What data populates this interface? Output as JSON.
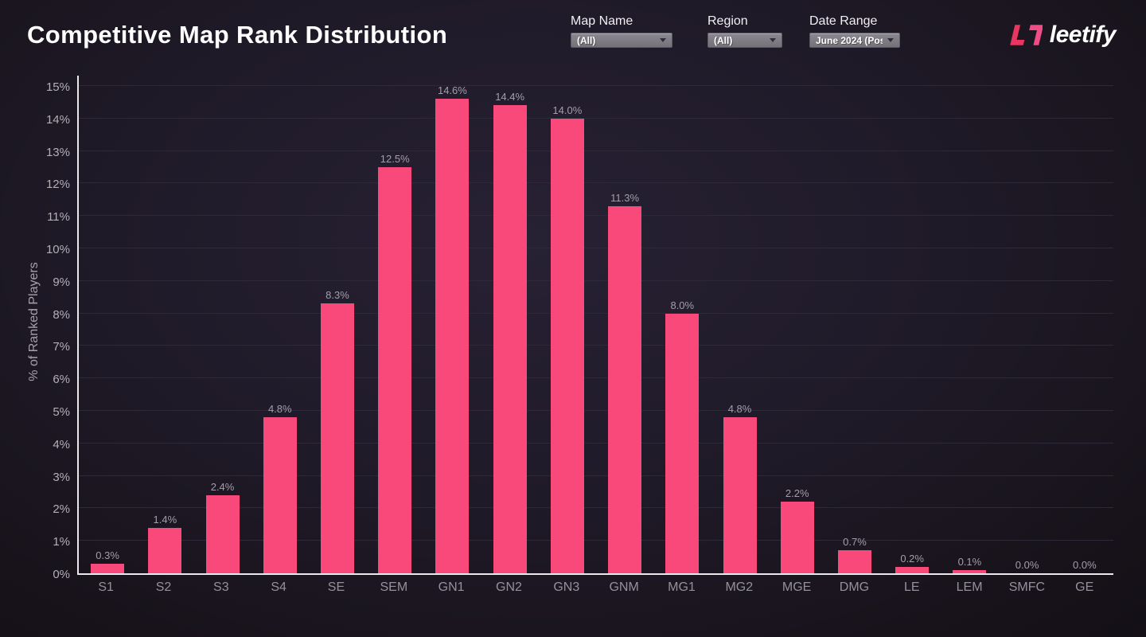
{
  "header": {
    "title": "Competitive Map Rank Distribution",
    "filters": {
      "map": {
        "label": "Map Name",
        "value": "(All)"
      },
      "region": {
        "label": "Region",
        "value": "(All)"
      },
      "date": {
        "label": "Date Range",
        "value": "June 2024 (Post…"
      }
    },
    "brand": {
      "name": "leetify"
    }
  },
  "icons": {
    "brand": "leetify-l7-icon",
    "dropdown": "chevron-down-icon"
  },
  "colors": {
    "bar": "#f9497b",
    "logo_red": "#ea3560",
    "logo_pink": "#ee4d85",
    "background": "#1f1a28",
    "axis": "#e9e8ec"
  },
  "chart_data": {
    "type": "bar",
    "title": "Competitive Map Rank Distribution",
    "categories": [
      "S1",
      "S2",
      "S3",
      "S4",
      "SE",
      "SEM",
      "GN1",
      "GN2",
      "GN3",
      "GNM",
      "MG1",
      "MG2",
      "MGE",
      "DMG",
      "LE",
      "LEM",
      "SMFC",
      "GE"
    ],
    "values": [
      0.3,
      1.4,
      2.4,
      4.8,
      8.3,
      12.5,
      14.6,
      14.4,
      14.0,
      11.3,
      8.0,
      4.8,
      2.2,
      0.7,
      0.2,
      0.1,
      0.0,
      0.0
    ],
    "value_labels": [
      "0.3%",
      "1.4%",
      "2.4%",
      "4.8%",
      "8.3%",
      "12.5%",
      "14.6%",
      "14.4%",
      "14.0%",
      "11.3%",
      "8.0%",
      "4.8%",
      "2.2%",
      "0.7%",
      "0.2%",
      "0.1%",
      "0.0%",
      "0.0%"
    ],
    "xlabel": "",
    "ylabel": "% of Ranked Players",
    "ylim": [
      0,
      15
    ],
    "ytick_step": 1,
    "ytick_suffix": "%",
    "grid": "horizontal",
    "legend": "none",
    "bar_color": "#f9497b"
  }
}
